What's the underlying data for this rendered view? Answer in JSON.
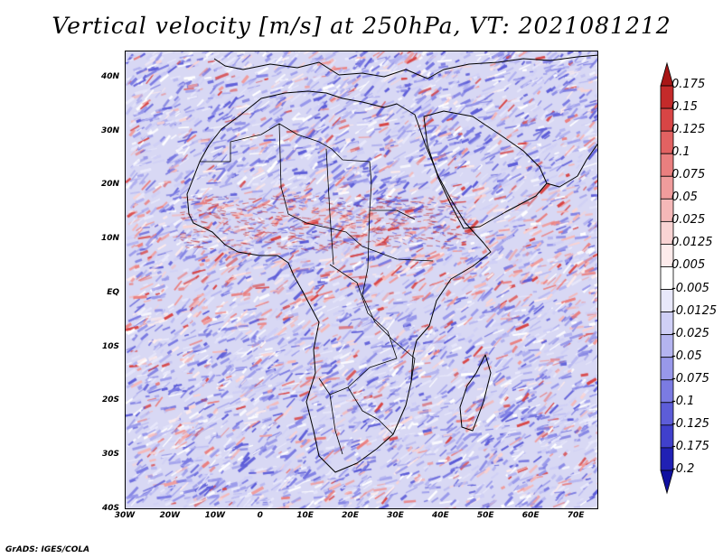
{
  "title": "Vertical velocity [m/s] at 250hPa, VT: 2021081212",
  "credit": "GrADS: IGES/COLA",
  "map": {
    "lon_range": [
      -30,
      75
    ],
    "lat_range": [
      -40,
      45
    ],
    "lat_labels": [
      "40N",
      "30N",
      "20N",
      "10N",
      "EQ",
      "10S",
      "20S",
      "30S",
      "40S"
    ],
    "lat_values": [
      40,
      30,
      20,
      10,
      0,
      -10,
      -20,
      -30,
      -40
    ],
    "lon_labels": [
      "30W",
      "20W",
      "10W",
      "0",
      "10E",
      "20E",
      "30E",
      "40E",
      "50E",
      "60E",
      "70E"
    ],
    "lon_values": [
      -30,
      -20,
      -10,
      0,
      10,
      20,
      30,
      40,
      50,
      60,
      70
    ]
  },
  "colorbar": {
    "labels": [
      "0.175",
      "0.15",
      "0.125",
      "0.1",
      "0.075",
      "0.05",
      "0.025",
      "0.0125",
      "0.005",
      "-0.005",
      "-0.0125",
      "-0.025",
      "-0.05",
      "-0.075",
      "-0.1",
      "-0.125",
      "-0.175",
      "-0.2"
    ],
    "colors": [
      "#a81616",
      "#c42a2a",
      "#d84545",
      "#e26262",
      "#ea7f7f",
      "#f09c9c",
      "#f5b8b8",
      "#f9d3d3",
      "#fdebeb",
      "#ffffff",
      "#e8e8fb",
      "#cfcff6",
      "#b4b4f0",
      "#9898ea",
      "#7b7be2",
      "#5d5dd8",
      "#4040cc",
      "#2020b4",
      "#1010a0"
    ]
  }
}
